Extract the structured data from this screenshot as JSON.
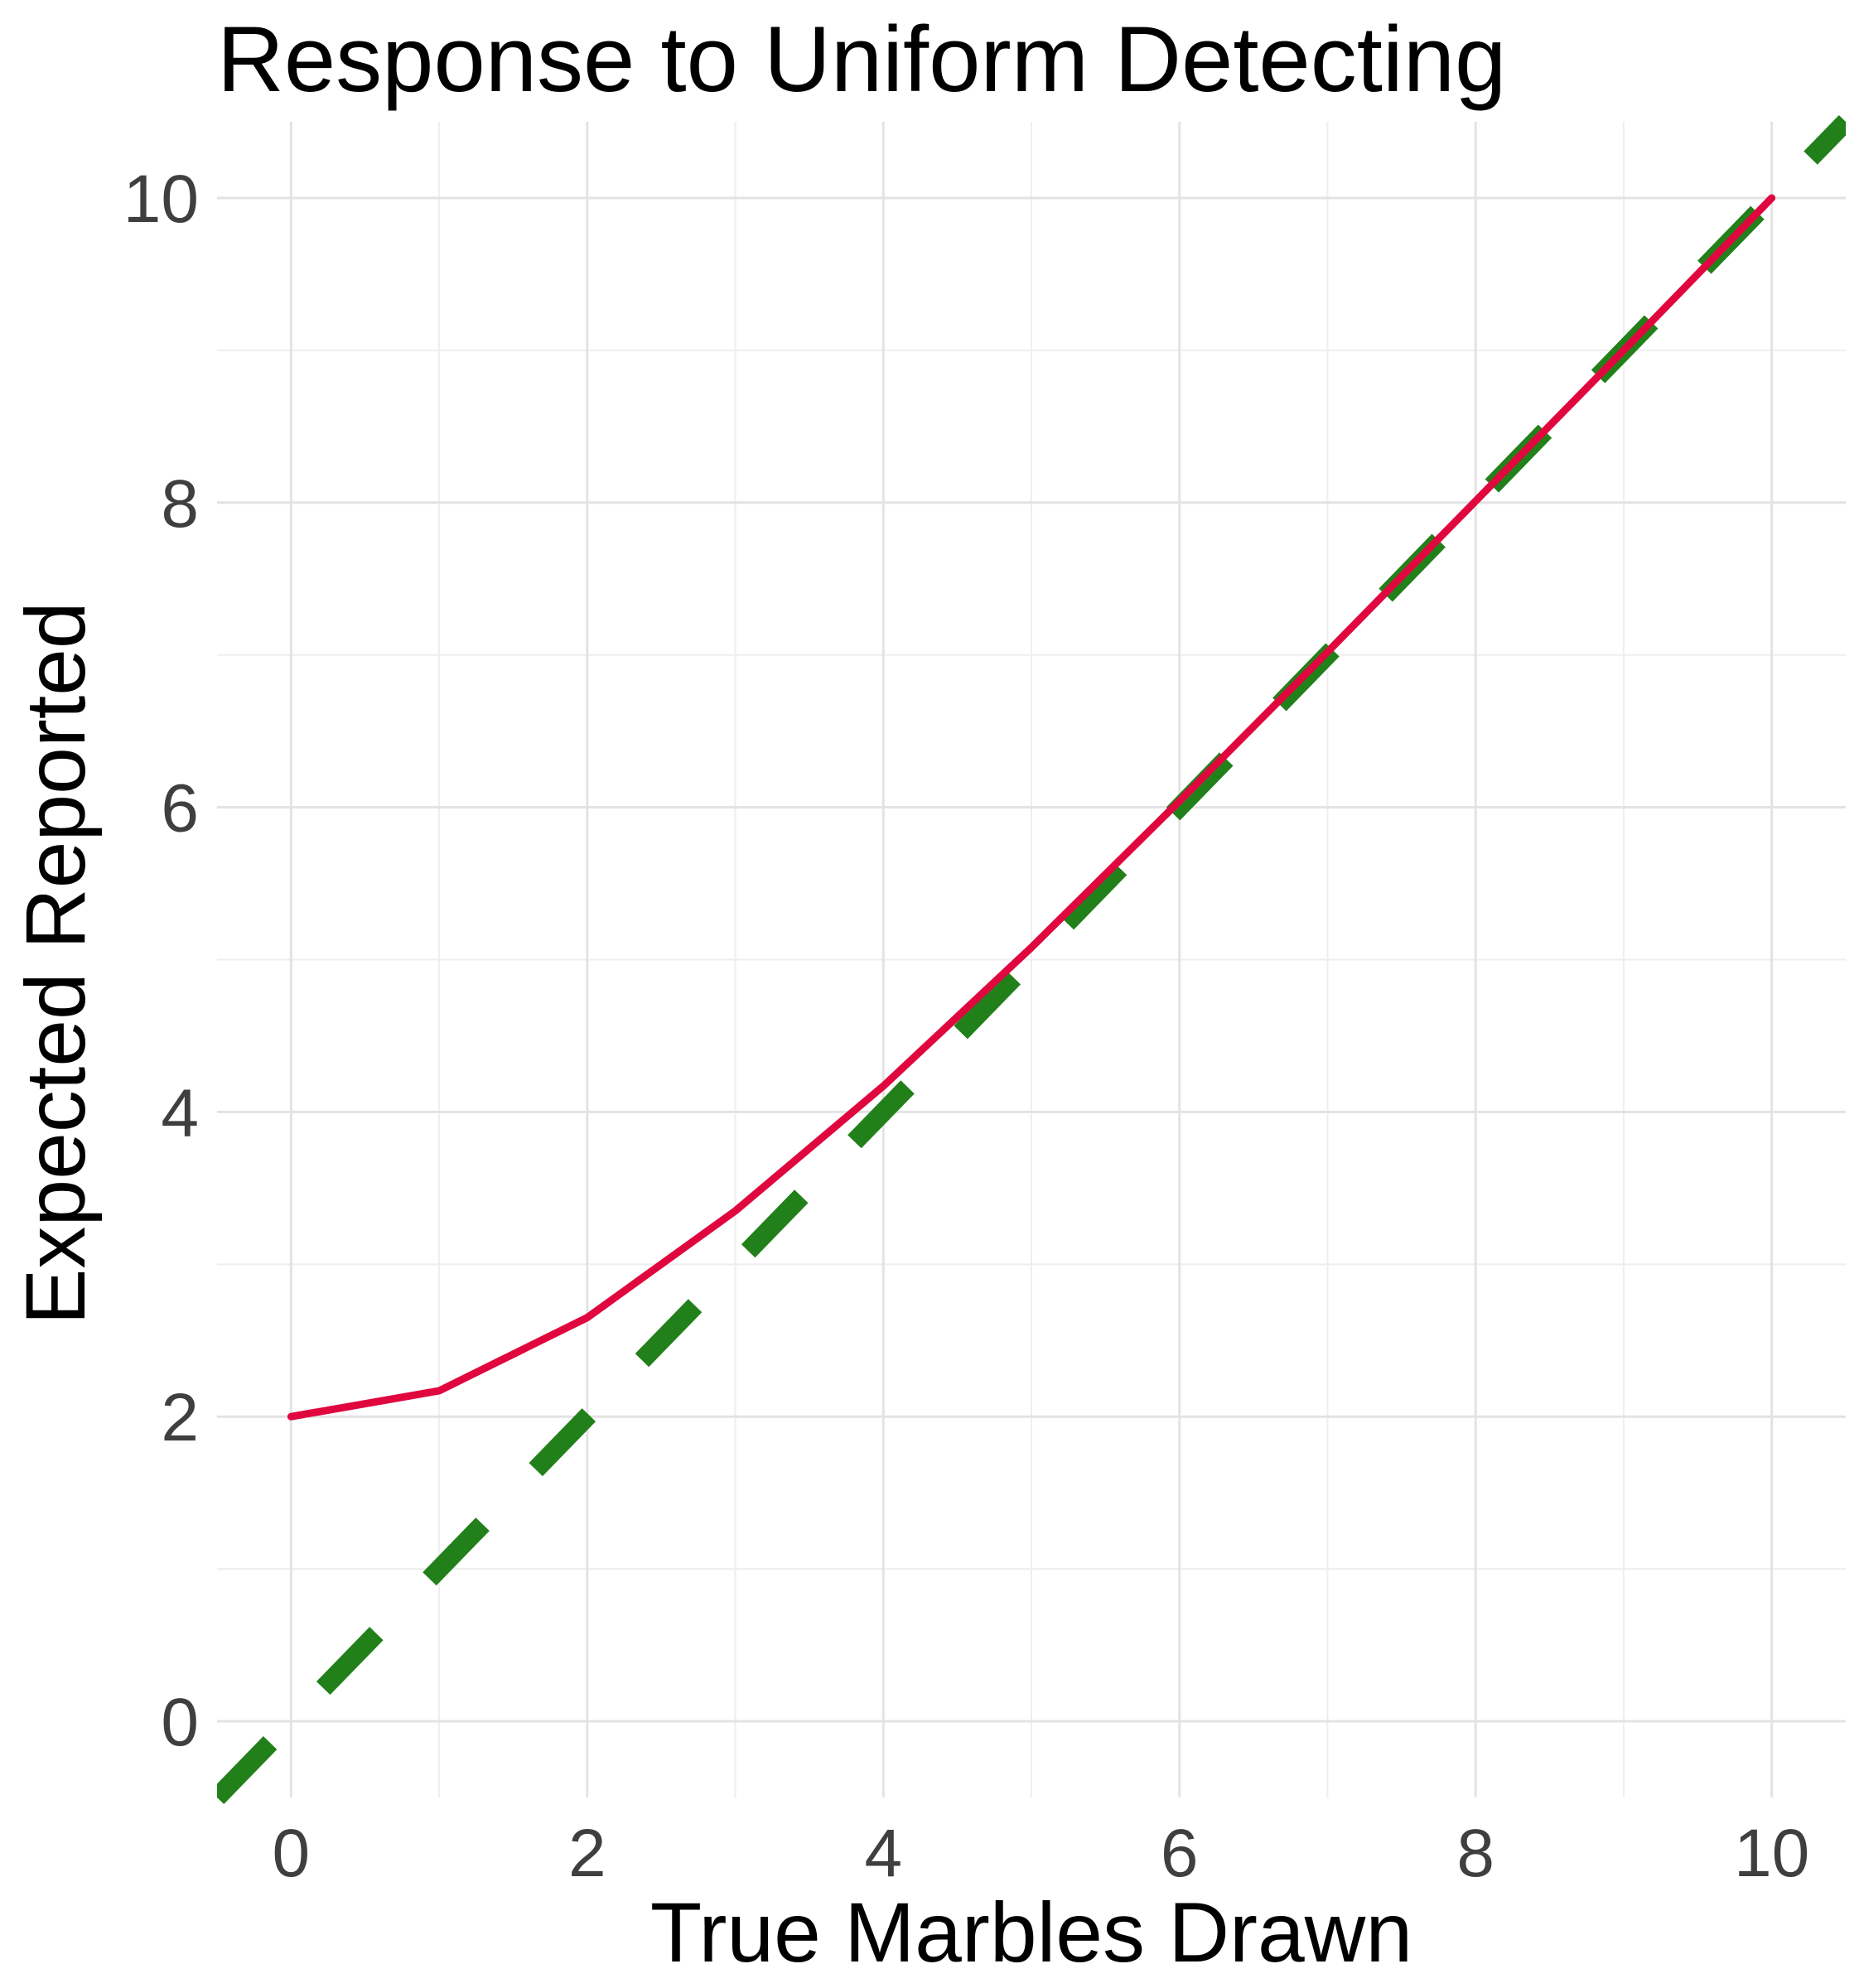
{
  "chart_data": {
    "type": "line",
    "title": "Response to Uniform Detecting",
    "xlabel": "True Marbles Drawn",
    "ylabel": "Expected Reported",
    "xlim": [
      -0.5,
      10.5
    ],
    "ylim": [
      -0.5,
      10.5
    ],
    "x_ticks": [
      0,
      2,
      4,
      6,
      8,
      10
    ],
    "y_ticks": [
      0,
      2,
      4,
      6,
      8,
      10
    ],
    "grid": true,
    "series": [
      {
        "style": "solid",
        "color": "#e0073f",
        "x": [
          0,
          1,
          2,
          3,
          4,
          5,
          6,
          7,
          8,
          9,
          10
        ],
        "y": [
          2.0,
          2.17,
          2.65,
          3.35,
          4.17,
          5.08,
          6.04,
          7.02,
          8.01,
          9.0,
          10.0
        ]
      },
      {
        "style": "dashed",
        "color": "#22801a",
        "x": [
          -0.5,
          10.5
        ],
        "y": [
          -0.5,
          10.5
        ]
      }
    ]
  }
}
